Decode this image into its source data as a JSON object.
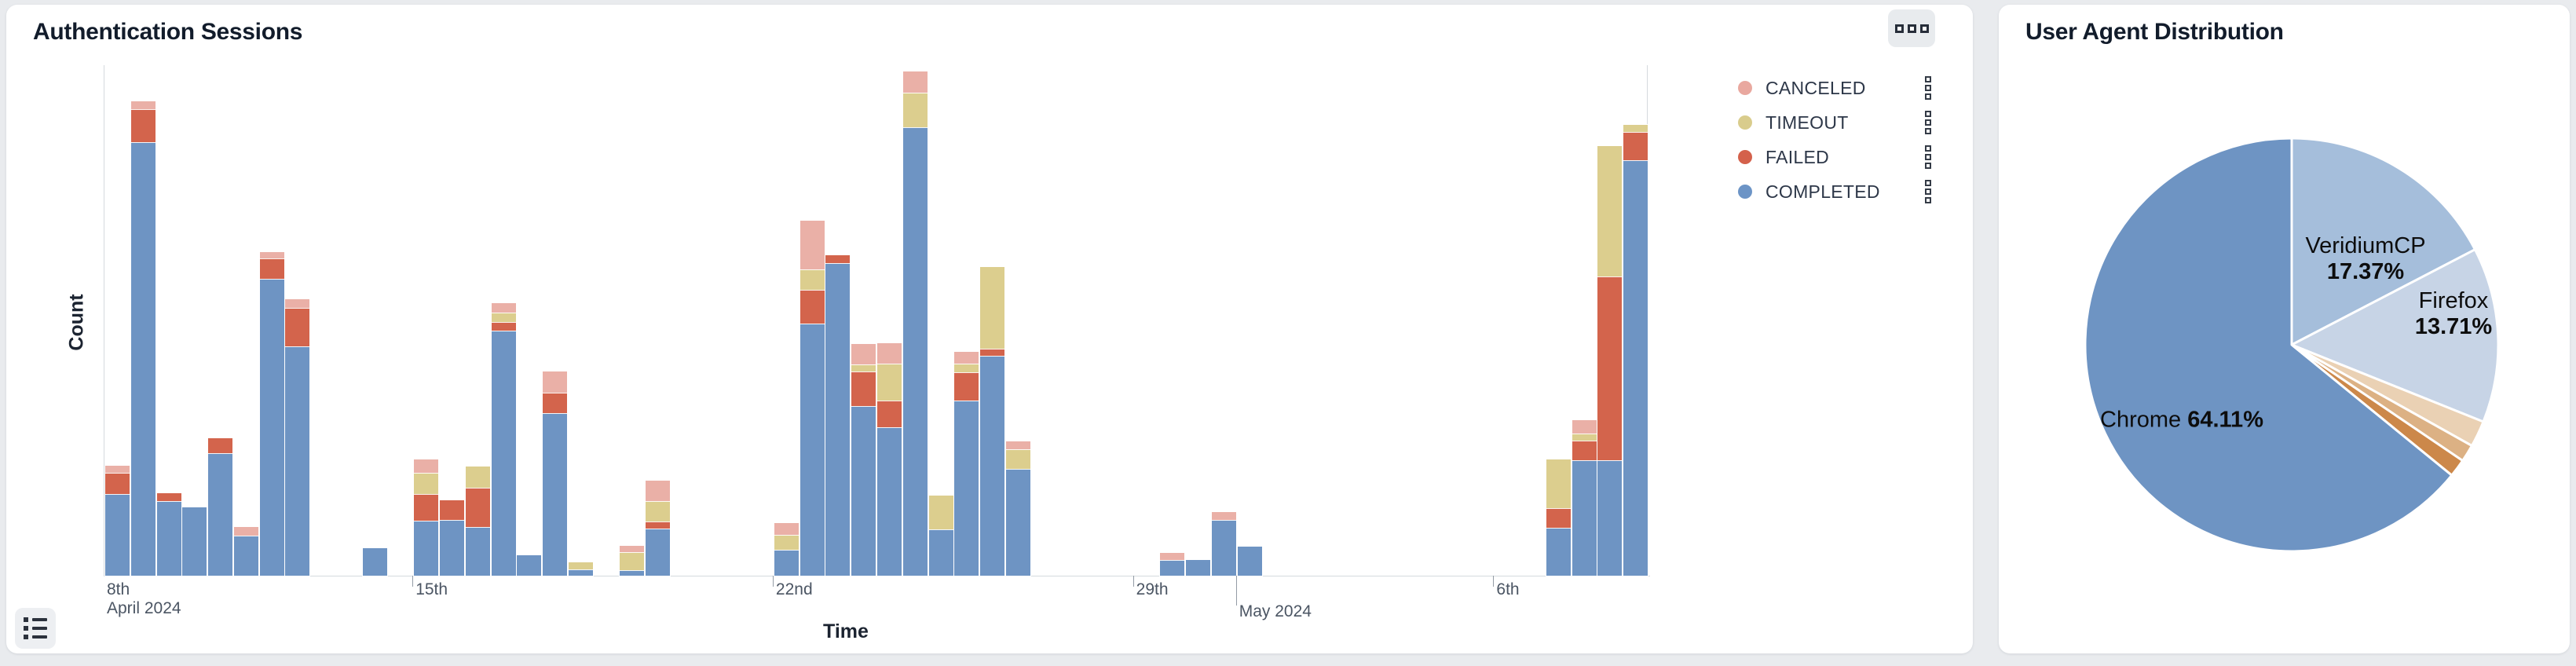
{
  "panels": {
    "auth_sessions": {
      "title": "Authentication Sessions"
    },
    "user_agent": {
      "title": "User Agent Distribution"
    }
  },
  "icons": {
    "panel_options": "three-squares-icon",
    "legend_row_handle": "drag-handle-squares-icon",
    "bottom_left": "list-icon"
  },
  "chart_data": [
    {
      "type": "bar",
      "stacked": true,
      "title": "Authentication Sessions",
      "xlabel": "Time",
      "ylabel": "Count",
      "y_axis_numeric_labels": false,
      "ylim": [
        0,
        650
      ],
      "value_note": "y axis shows no numeric ticks; values below are relative units read from pixel heights",
      "x_domain": [
        "2024-04-09 00:00",
        "2024-05-09 00:00"
      ],
      "bin_size": "12h",
      "slots_total": 60,
      "series_order_bottom_to_top": [
        "COMPLETED",
        "FAILED",
        "TIMEOUT",
        "CANCELED"
      ],
      "series_colors": {
        "COMPLETED": "#6e94c3",
        "FAILED": "#d3644c",
        "TIMEOUT": "#dcce8e",
        "CANCELED": "#eab0a7"
      },
      "legend": [
        {
          "label": "CANCELED",
          "color": "#e9a89f"
        },
        {
          "label": "TIMEOUT",
          "color": "#d9cc8c"
        },
        {
          "label": "FAILED",
          "color": "#d4614b"
        },
        {
          "label": "COMPLETED",
          "color": "#6c94c6"
        }
      ],
      "legend_position": "right",
      "grid": false,
      "x_ticks": [
        {
          "slot": 0,
          "label": "8th",
          "sub": "April 2024",
          "tick_mark": false
        },
        {
          "slot": 12,
          "label": "15th",
          "tick_mark": true
        },
        {
          "slot": 26,
          "label": "22nd",
          "tick_mark": true
        },
        {
          "slot": 40,
          "label": "29th",
          "tick_mark": true
        },
        {
          "slot": 44,
          "label": "May 2024",
          "month": true,
          "tick_mark": true
        },
        {
          "slot": 54,
          "label": "6th",
          "tick_mark": true
        }
      ],
      "bars": [
        {
          "slot": 0,
          "start": "Apr 9 AM",
          "COMPLETED": 104,
          "FAILED": 27,
          "TIMEOUT": 0,
          "CANCELED": 9
        },
        {
          "slot": 1,
          "start": "Apr 9 PM",
          "COMPLETED": 552,
          "FAILED": 42,
          "TIMEOUT": 0,
          "CANCELED": 10
        },
        {
          "slot": 2,
          "start": "Apr 10 AM",
          "COMPLETED": 95,
          "FAILED": 10,
          "TIMEOUT": 0,
          "CANCELED": 0
        },
        {
          "slot": 3,
          "start": "Apr 10 PM",
          "COMPLETED": 87,
          "FAILED": 0,
          "TIMEOUT": 0,
          "CANCELED": 0
        },
        {
          "slot": 4,
          "start": "Apr 11 AM",
          "COMPLETED": 156,
          "FAILED": 19,
          "TIMEOUT": 0,
          "CANCELED": 0
        },
        {
          "slot": 5,
          "start": "Apr 11 PM",
          "COMPLETED": 51,
          "FAILED": 0,
          "TIMEOUT": 0,
          "CANCELED": 11
        },
        {
          "slot": 6,
          "start": "Apr 12 AM",
          "COMPLETED": 378,
          "FAILED": 26,
          "TIMEOUT": 0,
          "CANCELED": 8
        },
        {
          "slot": 7,
          "start": "Apr 12 PM",
          "COMPLETED": 292,
          "FAILED": 49,
          "TIMEOUT": 0,
          "CANCELED": 11
        },
        {
          "slot": 10,
          "start": "Apr 14 AM",
          "COMPLETED": 35,
          "FAILED": 0,
          "TIMEOUT": 0,
          "CANCELED": 0
        },
        {
          "slot": 12,
          "start": "Apr 15 AM",
          "COMPLETED": 70,
          "FAILED": 34,
          "TIMEOUT": 27,
          "CANCELED": 17
        },
        {
          "slot": 13,
          "start": "Apr 15 PM",
          "COMPLETED": 71,
          "FAILED": 25,
          "TIMEOUT": 0,
          "CANCELED": 0
        },
        {
          "slot": 14,
          "start": "Apr 16 AM",
          "COMPLETED": 62,
          "FAILED": 50,
          "TIMEOUT": 27,
          "CANCELED": 0
        },
        {
          "slot": 15,
          "start": "Apr 16 PM",
          "COMPLETED": 312,
          "FAILED": 11,
          "TIMEOUT": 12,
          "CANCELED": 12
        },
        {
          "slot": 16,
          "start": "Apr 17 AM",
          "COMPLETED": 26,
          "FAILED": 0,
          "TIMEOUT": 0,
          "CANCELED": 0
        },
        {
          "slot": 17,
          "start": "Apr 17 PM",
          "COMPLETED": 207,
          "FAILED": 26,
          "TIMEOUT": 0,
          "CANCELED": 27
        },
        {
          "slot": 18,
          "start": "Apr 18 AM",
          "COMPLETED": 8,
          "FAILED": 0,
          "TIMEOUT": 9,
          "CANCELED": 0
        },
        {
          "slot": 20,
          "start": "Apr 19 AM",
          "COMPLETED": 7,
          "FAILED": 0,
          "TIMEOUT": 23,
          "CANCELED": 8
        },
        {
          "slot": 21,
          "start": "Apr 19 PM",
          "COMPLETED": 60,
          "FAILED": 9,
          "TIMEOUT": 26,
          "CANCELED": 26
        },
        {
          "slot": 26,
          "start": "Apr 22 AM",
          "COMPLETED": 33,
          "FAILED": 0,
          "TIMEOUT": 19,
          "CANCELED": 15
        },
        {
          "slot": 27,
          "start": "Apr 22 PM",
          "COMPLETED": 321,
          "FAILED": 43,
          "TIMEOUT": 26,
          "CANCELED": 62
        },
        {
          "slot": 28,
          "start": "Apr 23 AM",
          "COMPLETED": 398,
          "FAILED": 10,
          "TIMEOUT": 0,
          "CANCELED": 0
        },
        {
          "slot": 29,
          "start": "Apr 23 PM",
          "COMPLETED": 216,
          "FAILED": 44,
          "TIMEOUT": 9,
          "CANCELED": 26
        },
        {
          "slot": 30,
          "start": "Apr 24 AM",
          "COMPLETED": 189,
          "FAILED": 34,
          "TIMEOUT": 47,
          "CANCELED": 26
        },
        {
          "slot": 31,
          "start": "Apr 24 PM",
          "COMPLETED": 571,
          "FAILED": 0,
          "TIMEOUT": 44,
          "CANCELED": 27
        },
        {
          "slot": 32,
          "start": "Apr 25 AM",
          "COMPLETED": 59,
          "FAILED": 0,
          "TIMEOUT": 43,
          "CANCELED": 0
        },
        {
          "slot": 33,
          "start": "Apr 25 PM",
          "COMPLETED": 223,
          "FAILED": 36,
          "TIMEOUT": 11,
          "CANCELED": 15
        },
        {
          "slot": 34,
          "start": "Apr 26 AM",
          "COMPLETED": 280,
          "FAILED": 9,
          "TIMEOUT": 104,
          "CANCELED": 0
        },
        {
          "slot": 35,
          "start": "Apr 26 PM",
          "COMPLETED": 136,
          "FAILED": 0,
          "TIMEOUT": 25,
          "CANCELED": 10
        },
        {
          "slot": 41,
          "start": "Apr 29 PM",
          "COMPLETED": 20,
          "FAILED": 0,
          "TIMEOUT": 0,
          "CANCELED": 9
        },
        {
          "slot": 42,
          "start": "Apr 30 AM",
          "COMPLETED": 20,
          "FAILED": 0,
          "TIMEOUT": 0,
          "CANCELED": 0
        },
        {
          "slot": 43,
          "start": "Apr 30 PM",
          "COMPLETED": 71,
          "FAILED": 0,
          "TIMEOUT": 0,
          "CANCELED": 10
        },
        {
          "slot": 44,
          "start": "May 1 AM",
          "COMPLETED": 37,
          "FAILED": 0,
          "TIMEOUT": 0,
          "CANCELED": 0
        },
        {
          "slot": 56,
          "start": "May 7 AM",
          "COMPLETED": 61,
          "FAILED": 25,
          "TIMEOUT": 62,
          "CANCELED": 0
        },
        {
          "slot": 57,
          "start": "May 7 PM",
          "COMPLETED": 147,
          "FAILED": 25,
          "TIMEOUT": 9,
          "CANCELED": 17
        },
        {
          "slot": 58,
          "start": "May 8 AM",
          "COMPLETED": 147,
          "FAILED": 234,
          "TIMEOUT": 166,
          "CANCELED": 0
        },
        {
          "slot": 59,
          "start": "May 8 PM",
          "COMPLETED": 529,
          "FAILED": 36,
          "TIMEOUT": 9,
          "CANCELED": 0
        }
      ]
    },
    {
      "type": "pie",
      "title": "User Agent Distribution",
      "start_angle": "12 o'clock",
      "direction": "clockwise",
      "slice_gap_color": "#ffffff",
      "slices": [
        {
          "label": "VeridiumCP",
          "pct": 17.37,
          "color": "#a5bedb",
          "label_lines": [
            "VeridiumCP",
            "17.37%"
          ],
          "label_pos": {
            "x": 467,
            "y": 324
          }
        },
        {
          "label": "Firefox",
          "pct": 13.71,
          "color": "#c7d4e6",
          "label_lines": [
            "Firefox",
            "13.71%"
          ],
          "label_pos": {
            "x": 579,
            "y": 394
          }
        },
        {
          "label": "",
          "pct": 2.05,
          "color": "#ead1b4"
        },
        {
          "label": "",
          "pct": 1.35,
          "color": "#dcb184"
        },
        {
          "label": "",
          "pct": 1.41,
          "color": "#cc884a"
        },
        {
          "label": "Chrome",
          "pct": 64.11,
          "color": "#6e94c3",
          "label_inline": [
            "Chrome",
            "64.11%"
          ],
          "label_pos": {
            "x": 233,
            "y": 529
          }
        }
      ]
    }
  ]
}
